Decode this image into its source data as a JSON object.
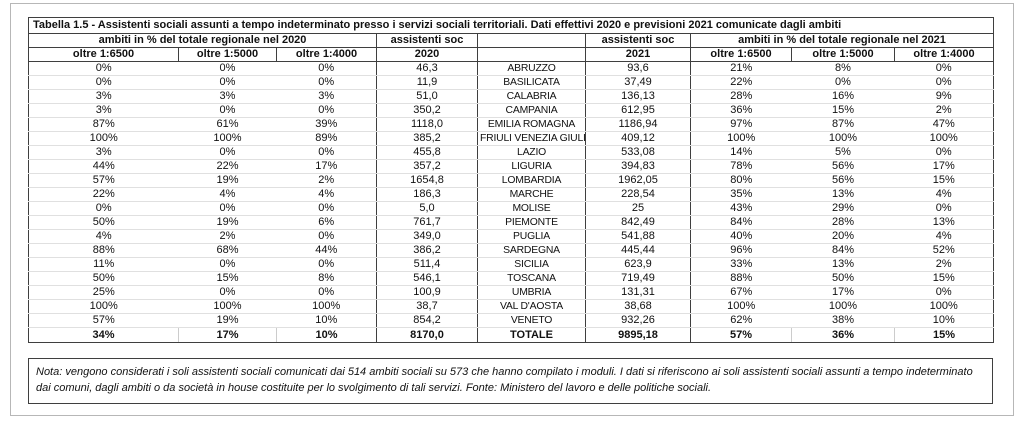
{
  "table": {
    "title": "Tabella 1.5 - Assistenti sociali assunti a tempo indeterminato presso i servizi sociali territoriali. Dati effettivi 2020 e previsioni 2021 comunicate dagli ambiti",
    "group_2020": "ambiti in % del totale regionale nel 2020",
    "group_2021": "ambiti in % del totale regionale nel 2021",
    "soc_label": "assistenti soc",
    "year_2020": "2020",
    "year_2021": "2021",
    "thresholds": [
      "oltre 1:6500",
      "oltre 1:5000",
      "oltre 1:4000"
    ],
    "rows": [
      [
        "0%",
        "0%",
        "0%",
        "46,3",
        "ABRUZZO",
        "93,6",
        "21%",
        "8%",
        "0%"
      ],
      [
        "0%",
        "0%",
        "0%",
        "11,9",
        "BASILICATA",
        "37,49",
        "22%",
        "0%",
        "0%"
      ],
      [
        "3%",
        "3%",
        "3%",
        "51,0",
        "CALABRIA",
        "136,13",
        "28%",
        "16%",
        "9%"
      ],
      [
        "3%",
        "0%",
        "0%",
        "350,2",
        "CAMPANIA",
        "612,95",
        "36%",
        "15%",
        "2%"
      ],
      [
        "87%",
        "61%",
        "39%",
        "1118,0",
        "EMILIA ROMAGNA",
        "1186,94",
        "97%",
        "87%",
        "47%"
      ],
      [
        "100%",
        "100%",
        "89%",
        "385,2",
        "FRIULI VENEZIA GIULIA",
        "409,12",
        "100%",
        "100%",
        "100%"
      ],
      [
        "3%",
        "0%",
        "0%",
        "455,8",
        "LAZIO",
        "533,08",
        "14%",
        "5%",
        "0%"
      ],
      [
        "44%",
        "22%",
        "17%",
        "357,2",
        "LIGURIA",
        "394,83",
        "78%",
        "56%",
        "17%"
      ],
      [
        "57%",
        "19%",
        "2%",
        "1654,8",
        "LOMBARDIA",
        "1962,05",
        "80%",
        "56%",
        "15%"
      ],
      [
        "22%",
        "4%",
        "4%",
        "186,3",
        "MARCHE",
        "228,54",
        "35%",
        "13%",
        "4%"
      ],
      [
        "0%",
        "0%",
        "0%",
        "5,0",
        "MOLISE",
        "25",
        "43%",
        "29%",
        "0%"
      ],
      [
        "50%",
        "19%",
        "6%",
        "761,7",
        "PIEMONTE",
        "842,49",
        "84%",
        "28%",
        "13%"
      ],
      [
        "4%",
        "2%",
        "0%",
        "349,0",
        "PUGLIA",
        "541,88",
        "40%",
        "20%",
        "4%"
      ],
      [
        "88%",
        "68%",
        "44%",
        "386,2",
        "SARDEGNA",
        "445,44",
        "96%",
        "84%",
        "52%"
      ],
      [
        "11%",
        "0%",
        "0%",
        "511,4",
        "SICILIA",
        "623,9",
        "33%",
        "13%",
        "2%"
      ],
      [
        "50%",
        "15%",
        "8%",
        "546,1",
        "TOSCANA",
        "719,49",
        "88%",
        "50%",
        "15%"
      ],
      [
        "25%",
        "0%",
        "0%",
        "100,9",
        "UMBRIA",
        "131,31",
        "67%",
        "17%",
        "0%"
      ],
      [
        "100%",
        "100%",
        "100%",
        "38,7",
        "VAL D'AOSTA",
        "38,68",
        "100%",
        "100%",
        "100%"
      ],
      [
        "57%",
        "19%",
        "10%",
        "854,2",
        "VENETO",
        "932,26",
        "62%",
        "38%",
        "10%"
      ]
    ],
    "totale": [
      "34%",
      "17%",
      "10%",
      "8170,0",
      "TOTALE",
      "9895,18",
      "57%",
      "36%",
      "15%"
    ]
  },
  "note": "Nota: vengono considerati i soli assistenti sociali comunicati dai 514 ambiti sociali su 573 che hanno compilato i moduli. I dati si riferiscono ai soli assistenti sociali assunti a tempo indeterminato dai comuni, dagli ambiti o da società in house costituite per lo svolgimento di tali servizi. Fonte: Ministero del lavoro e delle politiche sociali."
}
